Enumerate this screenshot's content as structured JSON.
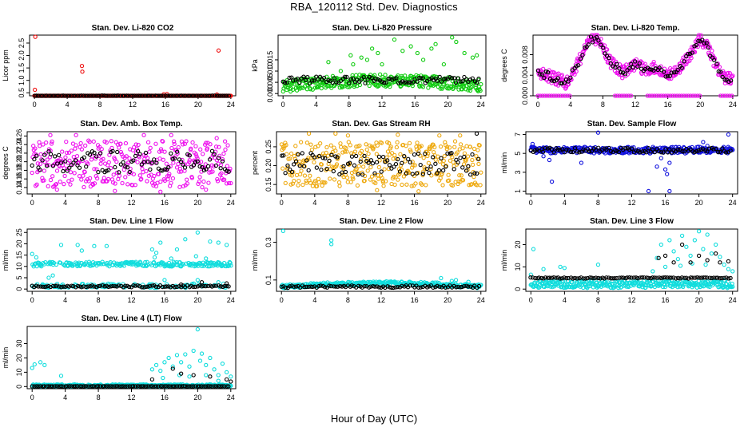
{
  "page": {
    "title": "RBA_120112  Std. Dev. Diagnostics",
    "xlabel": "Hour of Day (UTC)"
  },
  "colors": {
    "red": "#ee1111",
    "green": "#11cc11",
    "magenta": "#ee11ee",
    "orange": "#eeaa11",
    "blue": "#1111dd",
    "cyan": "#11dddd",
    "black": "#000000"
  },
  "chart_data": [
    {
      "id": "co2",
      "type": "scatter",
      "title": "Stan. Dev. Li-820 CO2",
      "ylabel": "Licor ppm",
      "xlim": [
        -0.6,
        24.6
      ],
      "xticks": [
        0,
        4,
        8,
        12,
        16,
        20,
        24
      ],
      "ylim": [
        0.38,
        2.82
      ],
      "yticks": [
        "0.5",
        "1.0",
        "1.5",
        "2.0",
        "2.5"
      ],
      "color": "red",
      "band": {
        "lo": 0.3,
        "hi": 0.38
      },
      "outliers": [
        [
          0.1,
          2.75
        ],
        [
          0.05,
          0.62
        ],
        [
          5.8,
          1.58
        ],
        [
          5.85,
          1.35
        ],
        [
          22.5,
          2.2
        ],
        [
          16.2,
          0.45
        ],
        [
          22.3,
          0.43
        ],
        [
          15.8,
          0.44
        ]
      ],
      "overlay": {
        "color": "black",
        "mean": 0.36,
        "spread": 0.03
      }
    },
    {
      "id": "pressure",
      "type": "scatter",
      "title": "Stan. Dev. Li-820 Pressure",
      "ylabel": "kPa",
      "xlim": [
        -0.6,
        24.6
      ],
      "xticks": [
        0,
        4,
        8,
        12,
        16,
        20,
        24
      ],
      "ylim": [
        -0.001,
        0.026
      ],
      "yticks": [
        "0.000",
        "0.005",
        "0.010",
        "0.015"
      ],
      "color": "green",
      "band": {
        "lo": 0.0005,
        "hi": 0.006
      },
      "band_hump": 0.0025,
      "outliers": [
        [
          5.5,
          0.014
        ],
        [
          7.0,
          0.01
        ],
        [
          8.2,
          0.017
        ],
        [
          8.5,
          0.013
        ],
        [
          9.5,
          0.016
        ],
        [
          10.2,
          0.015
        ],
        [
          11.5,
          0.018
        ],
        [
          12.0,
          0.013
        ],
        [
          13.5,
          0.024
        ],
        [
          14.5,
          0.019
        ],
        [
          15.5,
          0.021
        ],
        [
          16.3,
          0.018
        ],
        [
          17.0,
          0.015
        ],
        [
          18.5,
          0.022
        ],
        [
          19.5,
          0.013
        ],
        [
          20.5,
          0.025
        ],
        [
          21.0,
          0.023
        ],
        [
          22.0,
          0.018
        ],
        [
          23.0,
          0.016
        ],
        [
          23.5,
          0.017
        ],
        [
          18.0,
          0.02
        ],
        [
          10.8,
          0.02
        ]
      ],
      "overlay": {
        "color": "black",
        "mean": 0.006,
        "spread": 0.0015
      }
    },
    {
      "id": "temp",
      "type": "scatter",
      "title": "Stan. Dev. Li-820 Temp.",
      "ylabel": "degrees C",
      "xlim": [
        -0.6,
        24.6
      ],
      "xticks": [
        0,
        4,
        8,
        12,
        16,
        20,
        24
      ],
      "ylim": [
        0.0,
        0.0118
      ],
      "yticks": [
        "0.000",
        "0.004",
        "0.008"
      ],
      "color": "magenta",
      "curve": [
        [
          0,
          0.0045
        ],
        [
          2,
          0.0035
        ],
        [
          3.5,
          0.0025
        ],
        [
          5,
          0.0065
        ],
        [
          6.5,
          0.0112
        ],
        [
          7.5,
          0.0108
        ],
        [
          9,
          0.0065
        ],
        [
          10.5,
          0.0045
        ],
        [
          12,
          0.0062
        ],
        [
          13,
          0.0052
        ],
        [
          14.5,
          0.0055
        ],
        [
          16,
          0.004
        ],
        [
          17.5,
          0.0055
        ],
        [
          19,
          0.0085
        ],
        [
          20,
          0.0112
        ],
        [
          21,
          0.0092
        ],
        [
          22.5,
          0.004
        ],
        [
          24,
          0.003
        ]
      ],
      "curve_spread": 0.0012,
      "zeros": [
        [
          0,
          4
        ],
        [
          9.5,
          11.5
        ],
        [
          13.5,
          20
        ],
        [
          22.5,
          24
        ]
      ],
      "overlay": {
        "color": "black",
        "follow_curve": true,
        "spread": 0.0007
      }
    },
    {
      "id": "ambbox",
      "type": "scatter",
      "title": "Stan. Dev. Amb. Box Temp.",
      "ylabel": "degrees C",
      "xlim": [
        -0.6,
        24.6
      ],
      "xticks": [
        0,
        4,
        8,
        12,
        16,
        20,
        24
      ],
      "ylim": [
        0.125,
        0.27
      ],
      "yticks": [
        "0.14",
        "0.16",
        "0.18",
        "0.20",
        "0.22",
        "0.24",
        "0.26"
      ],
      "color": "magenta",
      "band": {
        "lo": 0.14,
        "hi": 0.25
      },
      "outliers": [
        [
          2.2,
          0.262
        ],
        [
          5.3,
          0.262
        ],
        [
          13.5,
          0.262
        ],
        [
          16.8,
          0.262
        ],
        [
          10.0,
          0.132
        ],
        [
          15.5,
          0.13
        ],
        [
          21.0,
          0.135
        ],
        [
          3.0,
          0.135
        ],
        [
          22.3,
          0.255
        ]
      ],
      "overlay": {
        "color": "black",
        "mean": 0.2,
        "spread": 0.025
      }
    },
    {
      "id": "rh",
      "type": "scatter",
      "title": "Stan. Dev. Gas Stream RH",
      "ylabel": "percent",
      "xlim": [
        -0.6,
        24.6
      ],
      "xticks": [
        0,
        4,
        8,
        12,
        16,
        20,
        24
      ],
      "ylim": [
        0.125,
        0.29
      ],
      "yticks": [
        "0.15",
        "0.20",
        "0.25"
      ],
      "color": "orange",
      "band": {
        "lo": 0.145,
        "hi": 0.265
      },
      "outliers": [
        [
          3.3,
          0.285
        ],
        [
          6.5,
          0.285
        ],
        [
          11.5,
          0.135
        ],
        [
          14.0,
          0.282
        ],
        [
          19.0,
          0.28
        ],
        [
          8.0,
          0.28
        ],
        [
          21.5,
          0.28
        ],
        [
          16.5,
          0.132
        ]
      ],
      "overlay": {
        "color": "black",
        "mean": 0.205,
        "spread": 0.03,
        "extra": [
          [
            23.5,
            0.285
          ]
        ]
      }
    },
    {
      "id": "sample",
      "type": "scatter",
      "title": "Stan. Dev. Sample Flow",
      "ylabel": "ml/min",
      "xlim": [
        -0.6,
        24.6
      ],
      "xticks": [
        0,
        4,
        8,
        12,
        16,
        20,
        24
      ],
      "ylim": [
        0.7,
        7.3
      ],
      "yticks": [
        "1",
        "3",
        "5",
        "7"
      ],
      "color": "blue",
      "band": {
        "lo": 5.0,
        "hi": 5.7
      },
      "outliers": [
        [
          0.2,
          6.0
        ],
        [
          1.5,
          4.7
        ],
        [
          2.2,
          4.3
        ],
        [
          2.5,
          2.0
        ],
        [
          6.0,
          4.0
        ],
        [
          14.0,
          1.0
        ],
        [
          15.0,
          3.6
        ],
        [
          15.5,
          4.5
        ],
        [
          16.0,
          3.3
        ],
        [
          16.2,
          2.8
        ],
        [
          16.5,
          1.0
        ],
        [
          8.0,
          7.2
        ],
        [
          16.5,
          4.0
        ],
        [
          20.5,
          6.2
        ],
        [
          21.0,
          5.8
        ],
        [
          23.5,
          7.0
        ]
      ],
      "overlay": {
        "color": "black",
        "mean": 5.35,
        "spread": 0.25
      }
    },
    {
      "id": "line1",
      "type": "scatter",
      "title": "Stan. Dev. Line 1 Flow",
      "ylabel": "ml/min",
      "xlim": [
        -0.6,
        24.6
      ],
      "xticks": [
        0,
        4,
        8,
        12,
        16,
        20,
        24
      ],
      "ylim": [
        -1,
        26.5
      ],
      "yticks": [
        "0",
        "5",
        "10",
        "15",
        "20",
        "25"
      ],
      "color": "cyan",
      "band": {
        "lo": 10.0,
        "hi": 12.0
      },
      "band2": {
        "lo": 0.5,
        "hi": 2.5
      },
      "outliers": [
        [
          0.0,
          15.5
        ],
        [
          0.5,
          14.0
        ],
        [
          3.5,
          19.5
        ],
        [
          5.5,
          19.5
        ],
        [
          6.0,
          17.0
        ],
        [
          7.5,
          19.0
        ],
        [
          9.0,
          19.0
        ],
        [
          14.5,
          17.5
        ],
        [
          15.0,
          16.0
        ],
        [
          15.5,
          20.5
        ],
        [
          17.5,
          17.5
        ],
        [
          18.5,
          22.0
        ],
        [
          20.0,
          25.0
        ],
        [
          21.5,
          21.0
        ],
        [
          22.5,
          20.5
        ],
        [
          23.5,
          19.5
        ],
        [
          16.8,
          13.5
        ],
        [
          19.8,
          14.5
        ],
        [
          21.0,
          13.5
        ],
        [
          14.8,
          14.0
        ],
        [
          16.0,
          4.0
        ],
        [
          20.0,
          4.0
        ],
        [
          22.5,
          3.0
        ],
        [
          2.0,
          5.0
        ],
        [
          2.5,
          6.0
        ]
      ],
      "overlay": {
        "color": "black",
        "mean": 1.2,
        "spread": 0.4,
        "extra": [
          [
            20.5,
            3.0
          ],
          [
            23.5,
            2.5
          ],
          [
            18.0,
            2.0
          ]
        ]
      }
    },
    {
      "id": "line2",
      "type": "scatter",
      "title": "Stan. Dev. Line 2 Flow",
      "ylabel": "ml/min",
      "xlim": [
        -0.6,
        24.6
      ],
      "xticks": [
        0,
        4,
        8,
        12,
        16,
        20,
        24
      ],
      "ylim": [
        0.04,
        0.37
      ],
      "yticks": [
        "0.1",
        "0.3"
      ],
      "color": "cyan",
      "band": {
        "lo": 0.055,
        "hi": 0.075
      },
      "band_hump": 0.018,
      "outliers": [
        [
          0.2,
          0.36
        ],
        [
          6.0,
          0.31
        ],
        [
          6.0,
          0.29
        ],
        [
          19.2,
          0.11
        ],
        [
          21.0,
          0.1
        ],
        [
          20.5,
          0.095
        ],
        [
          22.5,
          0.09
        ]
      ],
      "overlay": {
        "color": "black",
        "mean": 0.065,
        "spread": 0.006
      }
    },
    {
      "id": "line3",
      "type": "scatter",
      "title": "Stan. Dev. Line 3 Flow",
      "ylabel": "ml/min",
      "xlim": [
        -0.6,
        24.6
      ],
      "xticks": [
        0,
        4,
        8,
        12,
        16,
        20,
        24
      ],
      "ylim": [
        -1,
        27
      ],
      "yticks": [
        "0",
        "10",
        "20"
      ],
      "color": "cyan",
      "band": {
        "lo": 0.5,
        "hi": 4.0
      },
      "outliers": [
        [
          0.0,
          6.5
        ],
        [
          0.3,
          18.0
        ],
        [
          1.5,
          9.0
        ],
        [
          3.5,
          10.0
        ],
        [
          4.0,
          9.5
        ],
        [
          8.0,
          11.0
        ],
        [
          14.5,
          8.0
        ],
        [
          15.0,
          14.0
        ],
        [
          15.5,
          20.0
        ],
        [
          16.5,
          22.0
        ],
        [
          17.0,
          17.0
        ],
        [
          17.5,
          13.5
        ],
        [
          18.0,
          24.0
        ],
        [
          18.5,
          19.0
        ],
        [
          19.0,
          15.0
        ],
        [
          19.5,
          22.0
        ],
        [
          20.0,
          26.0
        ],
        [
          20.5,
          18.0
        ],
        [
          21.0,
          24.5
        ],
        [
          21.5,
          16.0
        ],
        [
          22.0,
          20.0
        ],
        [
          22.5,
          14.5
        ],
        [
          23.0,
          11.0
        ],
        [
          23.5,
          9.0
        ],
        [
          24.0,
          8.0
        ],
        [
          16.0,
          10.0
        ],
        [
          17.8,
          10.5
        ],
        [
          20.8,
          11.0
        ],
        [
          19.2,
          11.5
        ]
      ],
      "overlay": {
        "color": "black",
        "mean": 5.0,
        "spread": 0.25,
        "extra": [
          [
            15.2,
            14.0
          ],
          [
            16.0,
            15.0
          ],
          [
            17.0,
            12.0
          ],
          [
            18.0,
            20.0
          ],
          [
            19.0,
            12.0
          ],
          [
            20.0,
            15.0
          ],
          [
            21.0,
            13.0
          ],
          [
            22.0,
            16.0
          ],
          [
            23.5,
            12.5
          ],
          [
            22.5,
            12.0
          ]
        ]
      }
    },
    {
      "id": "line4",
      "type": "scatter",
      "title": "Stan. Dev. Line 4 (LT) Flow",
      "ylabel": "ml/min",
      "xlim": [
        -0.6,
        24.6
      ],
      "xticks": [
        0,
        4,
        8,
        12,
        16,
        20,
        24
      ],
      "ylim": [
        -1.5,
        42
      ],
      "yticks": [
        "0",
        "10",
        "20",
        "30"
      ],
      "color": "cyan",
      "band": {
        "lo": 0.0,
        "hi": 1.5
      },
      "outliers": [
        [
          0.0,
          13.0
        ],
        [
          0.3,
          15.5
        ],
        [
          1.0,
          17.0
        ],
        [
          1.5,
          15.0
        ],
        [
          3.5,
          7.5
        ],
        [
          14.5,
          12.0
        ],
        [
          15.0,
          15.0
        ],
        [
          15.5,
          11.0
        ],
        [
          16.0,
          17.0
        ],
        [
          16.5,
          20.0
        ],
        [
          17.0,
          14.0
        ],
        [
          17.5,
          22.0
        ],
        [
          18.0,
          17.0
        ],
        [
          18.5,
          22.5
        ],
        [
          19.0,
          14.0
        ],
        [
          19.5,
          25.0
        ],
        [
          20.0,
          40.0
        ],
        [
          20.3,
          18.0
        ],
        [
          20.5,
          23.0
        ],
        [
          21.0,
          15.0
        ],
        [
          21.5,
          20.0
        ],
        [
          22.0,
          12.0
        ],
        [
          22.5,
          8.0
        ],
        [
          23.0,
          16.0
        ],
        [
          23.5,
          10.0
        ],
        [
          24.0,
          7.0
        ],
        [
          15.8,
          6.0
        ],
        [
          17.8,
          8.0
        ],
        [
          19.0,
          7.0
        ],
        [
          21.0,
          8.0
        ],
        [
          22.5,
          4.0
        ]
      ],
      "overlay": {
        "color": "black",
        "mean": 0.2,
        "spread": 0.08,
        "extra": [
          [
            14.5,
            5.0
          ],
          [
            17.0,
            12.5
          ],
          [
            18.0,
            9.0
          ],
          [
            19.5,
            8.0
          ],
          [
            21.5,
            7.0
          ],
          [
            23.5,
            5.0
          ],
          [
            24.0,
            3.5
          ]
        ]
      }
    }
  ]
}
